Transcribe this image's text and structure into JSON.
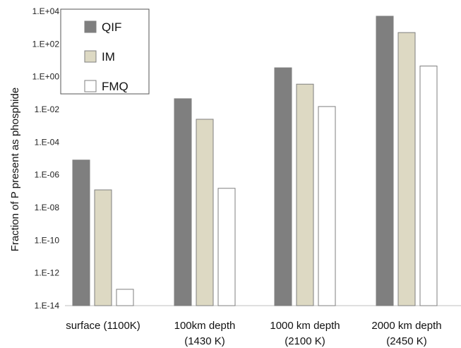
{
  "chart_data": {
    "type": "bar",
    "log_scale": true,
    "ylabel": "Fraction of P present as phosphide",
    "ylim": [
      1e-14,
      10000.0
    ],
    "yticks": [
      "1.E-14",
      "1.E-12",
      "1.E-10",
      "1.E-08",
      "1.E-06",
      "1.E-04",
      "1.E-02",
      "1.E+00",
      "1.E+02",
      "1.E+04"
    ],
    "categories": [
      [
        "surface (1100K)",
        ""
      ],
      [
        "100km depth",
        "(1430 K)"
      ],
      [
        "1000 km depth",
        "(2100 K)"
      ],
      [
        "2000 km depth",
        "(2450 K)"
      ]
    ],
    "series": [
      {
        "name": "QIF",
        "color": "#7f7f7f",
        "values": [
          8e-06,
          0.045,
          3.5,
          5000
        ]
      },
      {
        "name": "IM",
        "color": "#ddd9c3",
        "values": [
          1.2e-07,
          0.0025,
          0.35,
          500
        ]
      },
      {
        "name": "FMQ",
        "color": "#ffffff",
        "values": [
          1e-13,
          1.5e-07,
          0.015,
          4.5
        ]
      }
    ],
    "legend_position": "top-left",
    "grid": false
  }
}
